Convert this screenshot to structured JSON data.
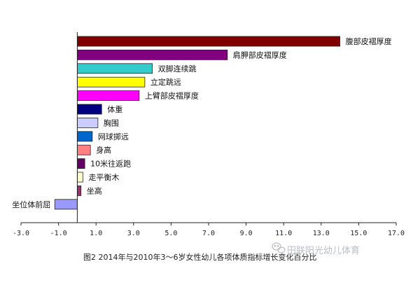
{
  "chart_data": {
    "type": "bar",
    "orientation": "horizontal",
    "categories": [
      "腹部皮褶厚度",
      "肩胛部皮褶厚度",
      "双脚连续跳",
      "立定跳远",
      "上臂部皮褶厚度",
      "体重",
      "胸围",
      "网球掷远",
      "身高",
      "10米往返跑",
      "走平衡木",
      "坐高",
      "坐位体前屈"
    ],
    "values": [
      14.0,
      8.0,
      4.0,
      3.6,
      3.3,
      1.3,
      1.1,
      0.8,
      0.7,
      0.4,
      0.3,
      0.2,
      -1.2
    ],
    "colors": [
      "#800000",
      "#800080",
      "#33cccc",
      "#ffff00",
      "#ff00ff",
      "#000080",
      "#ccccff",
      "#0066cc",
      "#ff8080",
      "#660066",
      "#ffffcc",
      "#993366",
      "#9999ff"
    ],
    "xlim": [
      -3.0,
      17.0
    ],
    "xticks": [
      "-3.0",
      "-1.0",
      "1.0",
      "3.0",
      "5.0",
      "7.0",
      "9.0",
      "11.0",
      "13.0",
      "15.0",
      "17.0"
    ],
    "xtick_values": [
      -3,
      -1,
      1,
      3,
      5,
      7,
      9,
      11,
      13,
      15,
      17
    ],
    "caption": "图2  2014年与2010年3～6岁女性幼儿各项体质指标增长变化百分比",
    "grid": false,
    "legend": "none"
  },
  "watermark": {
    "text": "田联阳光幼儿体育",
    "icon": "wechat-icon"
  }
}
